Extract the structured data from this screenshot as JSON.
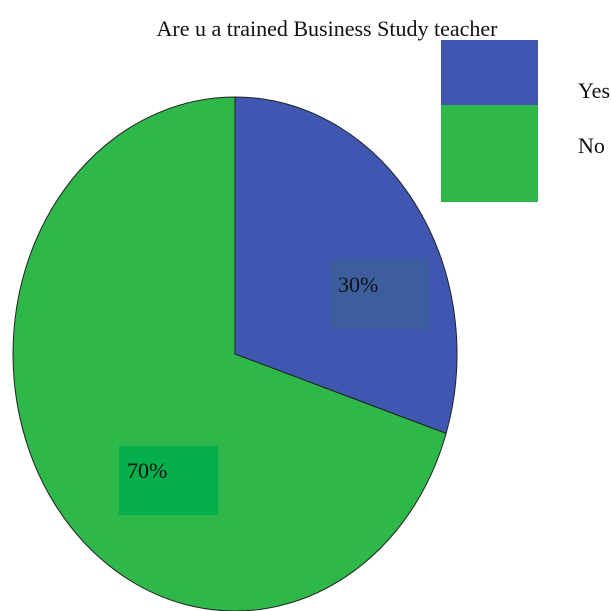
{
  "chart_data": {
    "type": "pie",
    "title": "Are u a trained Business Study teacher",
    "categories": [
      "Yes",
      "No"
    ],
    "values": [
      30,
      70
    ],
    "value_labels": [
      "30%",
      "70%"
    ],
    "colors": [
      "#3f57b0",
      "#2eb84a"
    ],
    "legend": "top-right"
  }
}
